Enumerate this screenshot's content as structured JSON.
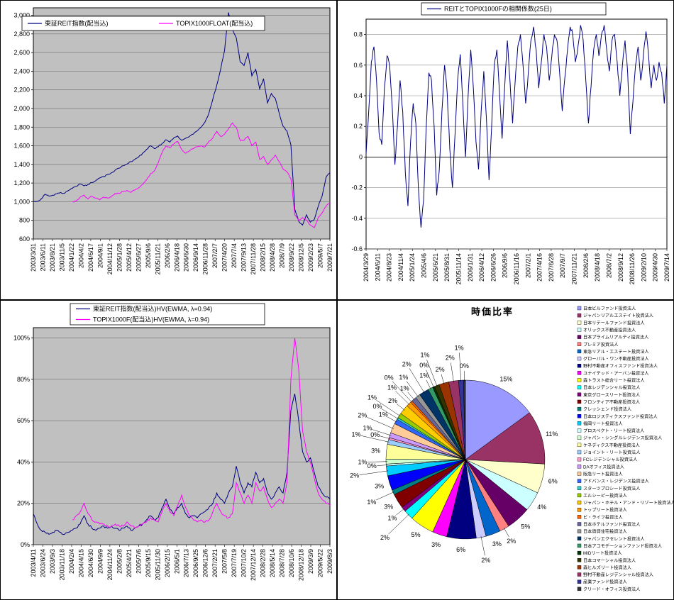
{
  "page": {
    "background": "#FFFFFF"
  },
  "chart_data": [
    {
      "id": "reit-index-chart",
      "type": "line",
      "position": "top-left",
      "plot_bg": "#C0C0C0",
      "legend": [
        {
          "label": "東証REIT指数(配当込)",
          "color": "#000080"
        },
        {
          "label": "TOPIX1000FLOAT(配当込)",
          "color": "#FF00FF"
        }
      ],
      "ylim": [
        600,
        3080
      ],
      "yticks": [
        {
          "v": 3000,
          "label": "3,000"
        },
        {
          "v": 2800,
          "label": "2,800"
        },
        {
          "v": 2600,
          "label": "2,600"
        },
        {
          "v": 2400,
          "label": "2,400"
        },
        {
          "v": 2200,
          "label": "2,200"
        },
        {
          "v": 2000,
          "label": "2,000"
        },
        {
          "v": 1800,
          "label": "1,800"
        },
        {
          "v": 1600,
          "label": "1,600"
        },
        {
          "v": 1400,
          "label": "1,400"
        },
        {
          "v": 1200,
          "label": "1,200"
        },
        {
          "v": 1000,
          "label": "1,000"
        },
        {
          "v": 800,
          "label": "800"
        },
        {
          "v": 600,
          "label": "600"
        }
      ],
      "xlabels": [
        "2003/3/31",
        "2003/6/11",
        "2003/8/21",
        "2003/11/5",
        "2004/1/22",
        "2004/4/2",
        "2004/6/17",
        "2004/9/1",
        "2004/11/12",
        "2005/1/28",
        "2005/4/12",
        "2005/6/27",
        "2005/9/6",
        "2005/11/21",
        "2006/2/6",
        "2006/4/18",
        "2006/6/30",
        "2006/9/14",
        "2006/11/28",
        "2007/2/7",
        "2007/4/20",
        "2007/7/4",
        "2007/9/13",
        "2007/11/28",
        "2008/2/15",
        "2008/4/28",
        "2008/7/9",
        "2008/9/22",
        "2008/12/5",
        "2009/2/23",
        "2009/5/7",
        "2009/7/21"
      ],
      "series": [
        {
          "name": "東証REIT指数(配当込)",
          "color": "#000080",
          "x0": 0,
          "values": [
            1000,
            1005,
            1030,
            1080,
            1060,
            1070,
            1085,
            1100,
            1090,
            1120,
            1145,
            1165,
            1190,
            1170,
            1185,
            1205,
            1225,
            1255,
            1270,
            1290,
            1310,
            1340,
            1360,
            1385,
            1405,
            1430,
            1455,
            1480,
            1520,
            1560,
            1600,
            1570,
            1590,
            1625,
            1665,
            1640,
            1685,
            1705,
            1660,
            1680,
            1700,
            1725,
            1760,
            1800,
            1855,
            1950,
            2100,
            2250,
            2420,
            2620,
            3030,
            2850,
            2760,
            2500,
            2460,
            2600,
            2350,
            2420,
            2210,
            2320,
            2060,
            2160,
            2110,
            1950,
            1810,
            1760,
            1610,
            920,
            790,
            750,
            860,
            780,
            810,
            950,
            1060,
            1260,
            1310
          ]
        },
        {
          "name": "TOPIX1000FLOAT(配当込)",
          "color": "#FF00FF",
          "x0": 0.132,
          "values": [
            1000,
            1010,
            1050,
            1070,
            1030,
            1060,
            1040,
            1020,
            1050,
            1040,
            1060,
            1090,
            1090,
            1110,
            1120,
            1100,
            1125,
            1150,
            1185,
            1235,
            1300,
            1330,
            1420,
            1530,
            1600,
            1580,
            1620,
            1645,
            1560,
            1520,
            1545,
            1570,
            1590,
            1600,
            1590,
            1650,
            1685,
            1755,
            1700,
            1725,
            1785,
            1845,
            1800,
            1655,
            1660,
            1700,
            1600,
            1640,
            1455,
            1485,
            1400,
            1450,
            1500,
            1430,
            1350,
            1320,
            1250,
            860,
            800,
            830,
            800,
            750,
            720,
            830,
            880,
            950,
            985
          ]
        }
      ]
    },
    {
      "id": "correlation-chart",
      "type": "line",
      "position": "top-right",
      "plot_bg": "#FFFFFF",
      "legend": [
        {
          "label": "REITとTOPIX1000Fの相関係数(25日)",
          "color": "#000080"
        }
      ],
      "ylim": [
        -0.6,
        0.9
      ],
      "yticks": [
        {
          "v": 0.8,
          "label": "0.8"
        },
        {
          "v": 0.6,
          "label": "0.6"
        },
        {
          "v": 0.4,
          "label": "0.4"
        },
        {
          "v": 0.2,
          "label": "0.2"
        },
        {
          "v": 0,
          "label": "0"
        },
        {
          "v": -0.2,
          "label": "-0.2"
        },
        {
          "v": -0.4,
          "label": "-0.4"
        },
        {
          "v": -0.6,
          "label": "-0.6"
        }
      ],
      "xlabels": [
        "2004/3/29",
        "2004/6/11",
        "2004/8/23",
        "2004/11/4",
        "2005/1/24",
        "2005/4/6",
        "2005/6/21",
        "2005/8/31",
        "2005/11/14",
        "2006/1/31",
        "2006/4/12",
        "2006/6/26",
        "2006/9/6",
        "2006/11/16",
        "2007/2/1",
        "2007/4/16",
        "2007/6/28",
        "2007/9/7",
        "2007/11/21",
        "2008/2/6",
        "2008/4/18",
        "2008/7/2",
        "2008/9/12",
        "2008/11/26",
        "2009/2/10",
        "2009/4/30",
        "2009/7/14"
      ],
      "series": [
        {
          "name": "REITとTOPIX1000Fの相関係数(25日)",
          "color": "#000080",
          "x0": 0,
          "values": [
            0.02,
            0.3,
            0.62,
            0.72,
            0.5,
            0.15,
            0.08,
            0.45,
            0.66,
            0.6,
            0.32,
            -0.05,
            0.2,
            0.5,
            0.3,
            -0.1,
            -0.32,
            0.1,
            0.35,
            0.22,
            -0.2,
            -0.46,
            -0.28,
            0.2,
            0.55,
            0.5,
            0.2,
            -0.25,
            -0.08,
            0.3,
            0.6,
            0.42,
            0.05,
            -0.2,
            0.15,
            0.5,
            0.67,
            0.35,
            0,
            0.4,
            0.7,
            0.45,
            0.1,
            -0.08,
            0.3,
            0.56,
            0.25,
            -0.15,
            0.2,
            0.6,
            0.7,
            0.42,
            0.12,
            0.46,
            0.76,
            0.5,
            0.22,
            0.5,
            0.72,
            0.8,
            0.6,
            0.35,
            0.55,
            0.76,
            0.85,
            0.7,
            0.45,
            0.62,
            0.8,
            0.72,
            0.5,
            0.66,
            0.8,
            0.76,
            0.55,
            0.3,
            0.52,
            0.7,
            0.85,
            0.8,
            0.62,
            0.72,
            0.86,
            0.76,
            0.5,
            0.22,
            0.46,
            0.7,
            0.8,
            0.66,
            0.8,
            0.86,
            0.7,
            0.56,
            0.76,
            0.8,
            0.62,
            0.4,
            0.6,
            0.76,
            0.55,
            0.15,
            0.36,
            0.6,
            0.72,
            0.5,
            0.66,
            0.82,
            0.66,
            0.45,
            0.6,
            0.5,
            0.62,
            0.55,
            0.35,
            0.6
          ]
        }
      ]
    },
    {
      "id": "volatility-chart",
      "type": "line",
      "position": "bottom-left",
      "plot_bg": "#C0C0C0",
      "legend": [
        {
          "label": "東証REIT指数(配当込)HV(EWMA, λ=0.94)",
          "color": "#000080"
        },
        {
          "label": "TOPIX1000F(配当込)HV(EWMA, λ=0.94)",
          "color": "#FF00FF"
        }
      ],
      "ylim": [
        0,
        105
      ],
      "yticks": [
        {
          "v": 100,
          "label": "100%"
        },
        {
          "v": 80,
          "label": "80%"
        },
        {
          "v": 60,
          "label": "60%"
        },
        {
          "v": 40,
          "label": "40%"
        },
        {
          "v": 20,
          "label": "20%"
        },
        {
          "v": 0,
          "label": "0%"
        }
      ],
      "xlabels": [
        "2003/4/11",
        "2003/6/24",
        "2003/9/3",
        "2003/11/18",
        "2004/2/4",
        "2004/4/15",
        "2004/6/30",
        "2004/9/9",
        "2004/11/24",
        "2005/2/8",
        "2005/4/21",
        "2005/7/6",
        "2005/9/15",
        "2005/11/30",
        "2006/2/15",
        "2006/5/1",
        "2006/7/13",
        "2006/9/25",
        "2006/12/6",
        "2007/2/21",
        "2007/5/8",
        "2007/7/19",
        "2007/10/2",
        "2007/12/14",
        "2008/2/28",
        "2008/5/14",
        "2008/7/28",
        "2008/10/6",
        "2008/12/18",
        "2009/3/9",
        "2009/5/22",
        "2009/8/3"
      ],
      "series": [
        {
          "name": "東証REIT指数(配当込)HV(EWMA, λ=0.94)",
          "color": "#000080",
          "x0": 0,
          "values": [
            15,
            10,
            7,
            6,
            5,
            6,
            7,
            6,
            5,
            6,
            7,
            8,
            10,
            14,
            10,
            8,
            7,
            8,
            9,
            8,
            9,
            8,
            7,
            8,
            9,
            7,
            8,
            9,
            10,
            12,
            14,
            12,
            13,
            18,
            22,
            17,
            15,
            18,
            20,
            15,
            13,
            14,
            13,
            15,
            16,
            18,
            20,
            25,
            22,
            20,
            25,
            28,
            38,
            30,
            25,
            30,
            28,
            35,
            30,
            32,
            25,
            22,
            25,
            28,
            25,
            35,
            65,
            73,
            60,
            45,
            40,
            42,
            35,
            28,
            25,
            23,
            22
          ]
        },
        {
          "name": "TOPIX1000F(配当込)HV(EWMA, λ=0.94)",
          "color": "#FF00FF",
          "x0": 0.132,
          "values": [
            12,
            14,
            16,
            20,
            15,
            12,
            11,
            10,
            10,
            9,
            9,
            10,
            9,
            9,
            11,
            9,
            8,
            9,
            10,
            11,
            13,
            12,
            11,
            16,
            20,
            16,
            14,
            19,
            24,
            18,
            14,
            12,
            11,
            12,
            11,
            12,
            16,
            20,
            16,
            14,
            13,
            15,
            30,
            25,
            20,
            24,
            20,
            30,
            26,
            28,
            22,
            18,
            20,
            22,
            20,
            30,
            80,
            100,
            85,
            55,
            45,
            40,
            32,
            25,
            22,
            20,
            19
          ]
        }
      ]
    },
    {
      "id": "market-cap-pie",
      "type": "pie",
      "position": "bottom-right",
      "title": "時価比率",
      "slices": [
        {
          "name": "日本ビルファンド投資法人",
          "value": 15,
          "label": "15%",
          "color": "#9999FF"
        },
        {
          "name": "ジャパンリアルエステイト投資法人",
          "value": 11,
          "label": "11%",
          "color": "#993366"
        },
        {
          "name": "日本リテールファンド投資法人",
          "value": 6,
          "label": "6%",
          "color": "#FFFFCC"
        },
        {
          "name": "オリックス不動産投資法人",
          "value": 4,
          "label": "4%",
          "color": "#CCFFFF"
        },
        {
          "name": "日本プライムリアルティ投資法人",
          "value": 5,
          "label": "5%",
          "color": "#660066"
        },
        {
          "name": "プレミア投資法人",
          "value": 2,
          "label": "2%",
          "color": "#FF8080"
        },
        {
          "name": "東急リアル・エステート投資法人",
          "value": 3,
          "label": "3%",
          "color": "#0066CC"
        },
        {
          "name": "グローバル・ワン不動産投資法人",
          "value": 2,
          "label": "2%",
          "color": "#CCCCFF"
        },
        {
          "name": "野村不動産オフィスファンド投資法人",
          "value": 6,
          "label": "6%",
          "color": "#000080"
        },
        {
          "name": "ユナイテッド・アーバン投資法人",
          "value": 3,
          "label": "3%",
          "color": "#FF00FF"
        },
        {
          "name": "森トラスト総合リート投資法人",
          "value": 5,
          "label": "5%",
          "color": "#FFFF00"
        },
        {
          "name": "日本レジデンシャル投資法人",
          "value": 2,
          "label": "2%",
          "color": "#00FFFF"
        },
        {
          "name": "東京グロースリート投資法人",
          "value": 1,
          "label": "1%",
          "color": "#800080"
        },
        {
          "name": "フロンティア不動産投資法人",
          "value": 3,
          "label": "3%",
          "color": "#800000"
        },
        {
          "name": "クレッシェンド投資法人",
          "value": 1,
          "label": "1%",
          "color": "#008080"
        },
        {
          "name": "日本ロジスティクスファンド投資法人",
          "value": 3,
          "label": "3%",
          "color": "#0000FF"
        },
        {
          "name": "福岡リート投資法人",
          "value": 2,
          "label": "2%",
          "color": "#00CCFF"
        },
        {
          "name": "プロスペクト・リート投資法人",
          "value": 0.4,
          "label": "0%",
          "color": "#CCFFFF"
        },
        {
          "name": "ジャパン・シングルレジデンス投資法人",
          "value": 1,
          "label": "1%",
          "color": "#CCFFCC"
        },
        {
          "name": "ケネディクス不動産投資法人",
          "value": 3,
          "label": "3%",
          "color": "#FFFF99"
        },
        {
          "name": "ジョイント・リート投資法人",
          "value": 1,
          "label": "1%",
          "color": "#99CCFF"
        },
        {
          "name": "FCレジデンシャル投資法人",
          "value": 0.4,
          "label": "0%",
          "color": "#FF99CC"
        },
        {
          "name": "DAオフィス投資法人",
          "value": 1,
          "label": "1%",
          "color": "#CC99FF"
        },
        {
          "name": "阪急リート投資法人",
          "value": 2,
          "label": "2%",
          "color": "#FFCC99"
        },
        {
          "name": "アドバンス・レジデンス投資法人",
          "value": 1,
          "label": "1%",
          "color": "#3366FF"
        },
        {
          "name": "スターツプロシード投資法人",
          "value": 0.4,
          "label": "0%",
          "color": "#33CCCC"
        },
        {
          "name": "エルシーピー投資法人",
          "value": 1,
          "label": "1%",
          "color": "#99CC00"
        },
        {
          "name": "ジャパン・ホテル・アンド・リゾート投資法人",
          "value": 2,
          "label": "2%",
          "color": "#FFCC00"
        },
        {
          "name": "トップリート投資法人",
          "value": 1,
          "label": "1%",
          "color": "#FF9900"
        },
        {
          "name": "ビ・ライフ投資法人",
          "value": 0.4,
          "label": "0%",
          "color": "#FF6600"
        },
        {
          "name": "日本ホテルファンド投資法人",
          "value": 1,
          "label": "1%",
          "color": "#666699"
        },
        {
          "name": "日本賃貸住宅投資法人",
          "value": 1,
          "label": "1%",
          "color": "#969696"
        },
        {
          "name": "ジャパンエクセレント投資法人",
          "value": 2,
          "label": "2%",
          "color": "#003366"
        },
        {
          "name": "日本アコモデーションファンド投資法人",
          "value": 1,
          "label": "1%",
          "color": "#339966"
        },
        {
          "name": "MIDリート投資法人",
          "value": 0.4,
          "label": "0%",
          "color": "#003300"
        },
        {
          "name": "日本コマーシャル投資法人",
          "value": 1,
          "label": "1%",
          "color": "#333300"
        },
        {
          "name": "森ヒルズリート投資法人",
          "value": 2,
          "label": "2%",
          "color": "#993300"
        },
        {
          "name": "野村不動産レジデンシャル投資法人",
          "value": 2,
          "label": "2%",
          "color": "#993366"
        },
        {
          "name": "産業ファンド投資法人",
          "value": 1,
          "label": "1%",
          "color": "#333399"
        },
        {
          "name": "クリード・オフィス投資法人",
          "value": 0.4,
          "label": "0%",
          "color": "#333333"
        }
      ]
    }
  ]
}
